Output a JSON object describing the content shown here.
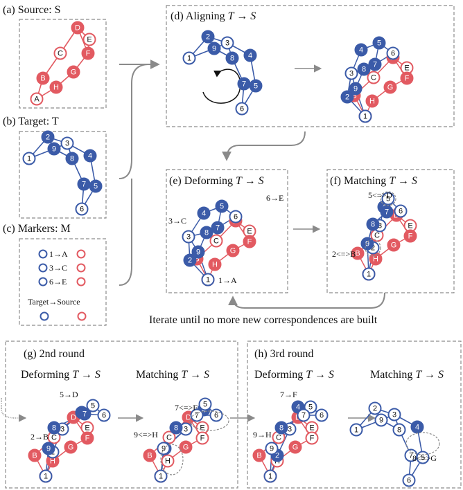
{
  "colors": {
    "blue": "#3b5ba8",
    "red": "#e25a61",
    "gray": "#8a8a8a"
  },
  "panels": {
    "a": {
      "title": "(a)  Source: S"
    },
    "b": {
      "title": "(b)  Target: T"
    },
    "c": {
      "title": "(c) Markers: M",
      "pairs": [
        "1→A",
        "3→C",
        "6→E"
      ],
      "legend": "Target→Source"
    },
    "d": {
      "title_prefix": "(d)  Aligning ",
      "title_math": "T → S"
    },
    "e": {
      "title_prefix": "(e)  Deforming ",
      "title_math": "T → S",
      "anno": [
        "6→E",
        "3→C",
        "1→A"
      ]
    },
    "f": {
      "title_prefix": "(f) Matching ",
      "title_math": "T → S",
      "anno": [
        "5<=>D",
        "2<=>B"
      ]
    },
    "g": {
      "title": "(g)  2nd round",
      "sub1_prefix": "Deforming ",
      "sub1_math": "T → S",
      "sub2_prefix": "Matching ",
      "sub2_math": "T → S",
      "anno": [
        "5→D",
        "2→B",
        "7<=>F",
        "9<=>H"
      ]
    },
    "h": {
      "title": "(h)  3rd round",
      "sub1_prefix": "Deforming ",
      "sub1_math": "T → S",
      "sub2_prefix": "Matching ",
      "sub2_math": "T → S",
      "anno": [
        "7→F",
        "9→H",
        "8<=>G"
      ]
    }
  },
  "iterate_caption": "Iterate until no more new correspondences are built",
  "graphs": {
    "source": {
      "nodes": [
        [
          "A",
          53,
          143
        ],
        [
          "B",
          62,
          113
        ],
        [
          "H",
          81,
          126
        ],
        [
          "C",
          87,
          77
        ],
        [
          "G",
          106,
          104
        ],
        [
          "D",
          112,
          40
        ],
        [
          "E",
          129,
          57
        ],
        [
          "F",
          127,
          77
        ]
      ],
      "edges": [
        [
          "A",
          "B"
        ],
        [
          "B",
          "C"
        ],
        [
          "C",
          "D"
        ],
        [
          "D",
          "E"
        ],
        [
          "E",
          "F"
        ],
        [
          "F",
          "G"
        ],
        [
          "G",
          "H"
        ],
        [
          "H",
          "A"
        ],
        [
          "D",
          "F"
        ]
      ]
    },
    "target": {
      "nodes": [
        [
          "1",
          42,
          229
        ],
        [
          "2",
          69,
          198
        ],
        [
          "9",
          78,
          215
        ],
        [
          "3",
          97,
          207
        ],
        [
          "8",
          104,
          229
        ],
        [
          "4",
          130,
          225
        ],
        [
          "7",
          121,
          266
        ],
        [
          "5",
          138,
          269
        ],
        [
          "6",
          118,
          302
        ]
      ],
      "edges": [
        [
          "1",
          "2"
        ],
        [
          "1",
          "9"
        ],
        [
          "2",
          "9"
        ],
        [
          "2",
          "3"
        ],
        [
          "9",
          "3"
        ],
        [
          "9",
          "8"
        ],
        [
          "3",
          "8"
        ],
        [
          "3",
          "4"
        ],
        [
          "8",
          "7"
        ],
        [
          "4",
          "5"
        ],
        [
          "7",
          "5"
        ],
        [
          "5",
          "6"
        ],
        [
          "7",
          "6"
        ]
      ]
    }
  }
}
